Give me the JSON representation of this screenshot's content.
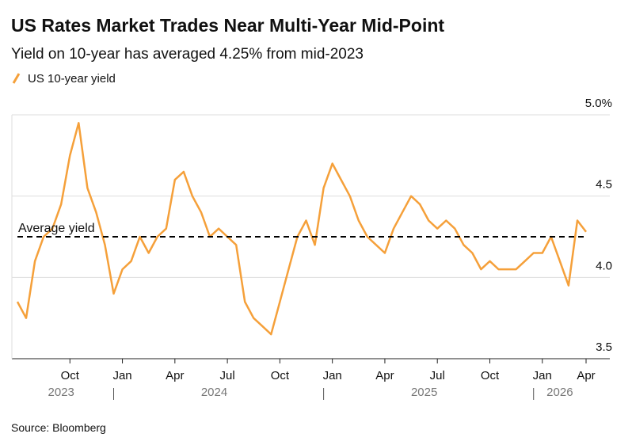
{
  "chart_data": {
    "type": "line",
    "title": "US Rates Market Trades Near Multi-Year Mid-Point",
    "subtitle": "Yield on 10-year has averaged 4.25% from mid-2023",
    "source": "Source: Bloomberg",
    "x": [
      "2023-07",
      "2023-08",
      "2023-08",
      "2023-09",
      "2023-09",
      "2023-10",
      "2023-10",
      "2023-11",
      "2023-11",
      "2023-12",
      "2023-12",
      "2024-01",
      "2024-01",
      "2024-02",
      "2024-02",
      "2024-03",
      "2024-03",
      "2024-04",
      "2024-04",
      "2024-05",
      "2024-05",
      "2024-06",
      "2024-06",
      "2024-07",
      "2024-07",
      "2024-08",
      "2024-08",
      "2024-09",
      "2024-09",
      "2024-10",
      "2024-10",
      "2024-11",
      "2024-11",
      "2024-12",
      "2024-12",
      "2025-01",
      "2025-01",
      "2025-02",
      "2025-02",
      "2025-03",
      "2025-03",
      "2025-04",
      "2025-04",
      "2025-05",
      "2025-05",
      "2025-06",
      "2025-06",
      "2025-07",
      "2025-07",
      "2025-08",
      "2025-08",
      "2025-09",
      "2025-09",
      "2025-10",
      "2025-10",
      "2025-11",
      "2025-11",
      "2025-12",
      "2025-12",
      "2026-01",
      "2026-01",
      "2026-02",
      "2026-02",
      "2026-03",
      "2026-03",
      "2026-04"
    ],
    "series": [
      {
        "name": "US 10-year yield",
        "color": "#f5a03a",
        "values": [
          3.85,
          3.75,
          4.1,
          4.25,
          4.3,
          4.45,
          4.75,
          4.95,
          4.55,
          4.4,
          4.2,
          3.9,
          4.05,
          4.1,
          4.25,
          4.15,
          4.25,
          4.3,
          4.6,
          4.65,
          4.5,
          4.4,
          4.25,
          4.3,
          4.25,
          4.2,
          3.85,
          3.75,
          3.7,
          3.65,
          3.85,
          4.05,
          4.25,
          4.35,
          4.2,
          4.55,
          4.7,
          4.6,
          4.5,
          4.35,
          4.25,
          4.2,
          4.15,
          4.3,
          4.4,
          4.5,
          4.45,
          4.35,
          4.3,
          4.35,
          4.3,
          4.2,
          4.15,
          4.05,
          4.1,
          4.05,
          4.05,
          4.05,
          4.1,
          4.15,
          4.15,
          4.25,
          4.1,
          3.95,
          4.35,
          4.28
        ]
      }
    ],
    "average": {
      "value": 4.25,
      "label": "Average yield"
    },
    "xticks": [
      {
        "value": "2023-10",
        "label": "Oct"
      },
      {
        "value": "2024-01",
        "label": "Jan"
      },
      {
        "value": "2024-04",
        "label": "Apr"
      },
      {
        "value": "2024-07",
        "label": "Jul"
      },
      {
        "value": "2024-10",
        "label": "Oct"
      },
      {
        "value": "2025-01",
        "label": "Jan"
      },
      {
        "value": "2025-04",
        "label": "Apr"
      },
      {
        "value": "2025-07",
        "label": "Jul"
      },
      {
        "value": "2025-10",
        "label": "Oct"
      },
      {
        "value": "2026-01",
        "label": "Jan"
      },
      {
        "value": "2026-04",
        "label": "Apr"
      }
    ],
    "years": [
      "2023",
      "2024",
      "2025",
      "2026"
    ],
    "ylim": [
      3.5,
      5.0
    ],
    "yticks": [
      3.5,
      {
        "value": 4,
        "label": "4.0"
      },
      4.5,
      {
        "value": 5,
        "label": "5.0%"
      }
    ],
    "grid": true
  }
}
